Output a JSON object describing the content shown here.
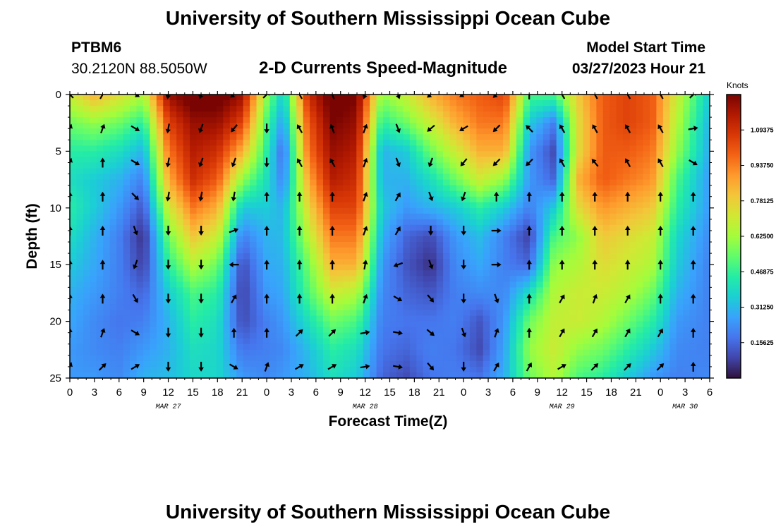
{
  "header": {
    "title": "University of Southern Mississippi Ocean Cube",
    "station": "PTBM6",
    "coords": "30.2120N  88.5050W",
    "subtitle": "2-D Currents Speed-Magnitude",
    "model_label": "Model Start Time",
    "model_time": "03/27/2023 Hour 21"
  },
  "footer": {
    "title": "University of Southern Mississippi Ocean Cube"
  },
  "chart_data": {
    "type": "heatmap",
    "title": "2-D Currents Speed-Magnitude",
    "xlabel": "Forecast Time(Z)",
    "ylabel": "Depth (ft)",
    "x_tick_labels": [
      "0",
      "3",
      "6",
      "9",
      "12",
      "15",
      "18",
      "21",
      "0",
      "3",
      "6",
      "9",
      "12",
      "15",
      "18",
      "21",
      "0",
      "3",
      "6",
      "9",
      "12",
      "15",
      "18",
      "21",
      "0",
      "3",
      "6"
    ],
    "x_hours_range": [
      0,
      78
    ],
    "day_labels": [
      {
        "text": "MAR 27",
        "hour": 12
      },
      {
        "text": "MAR 28",
        "hour": 36
      },
      {
        "text": "MAR 29",
        "hour": 60
      },
      {
        "text": "MAR 30",
        "hour": 75
      }
    ],
    "y_ticks": [
      0,
      5,
      10,
      15,
      20,
      25
    ],
    "ylim": [
      0,
      25
    ],
    "colorbar": {
      "unit": "Knots",
      "range": [
        0,
        1.25
      ],
      "labels": [
        "1.09375",
        "0.93750",
        "0.78125",
        "0.62500",
        "0.46875",
        "0.31250",
        "0.15625"
      ],
      "label_values": [
        1.09375,
        0.9375,
        0.78125,
        0.625,
        0.46875,
        0.3125,
        0.15625
      ],
      "colors": [
        "#30123b",
        "#4145ab",
        "#4675ed",
        "#39a2fc",
        "#1bcfd4",
        "#24eca6",
        "#61fc6c",
        "#a4fc3b",
        "#d1e834",
        "#f3c63a",
        "#fe9b2d",
        "#f36315",
        "#d93806",
        "#b11901",
        "#7a0402"
      ]
    },
    "speed_profiles": {
      "depths_ft": [
        0,
        2.5,
        5,
        7.5,
        10,
        12.5,
        15,
        17.5,
        20,
        22.5,
        25
      ],
      "points": [
        {
          "hour": 0,
          "v": [
            0.7,
            0.55,
            0.45,
            0.4,
            0.45,
            0.4,
            0.35,
            0.3,
            0.28,
            0.25,
            0.25
          ]
        },
        {
          "hour": 3,
          "v": [
            0.85,
            0.6,
            0.45,
            0.35,
            0.35,
            0.3,
            0.28,
            0.25,
            0.22,
            0.22,
            0.25
          ]
        },
        {
          "hour": 6,
          "v": [
            0.75,
            0.55,
            0.4,
            0.3,
            0.25,
            0.2,
            0.2,
            0.2,
            0.18,
            0.2,
            0.22
          ]
        },
        {
          "hour": 9,
          "v": [
            0.65,
            0.45,
            0.3,
            0.2,
            0.12,
            0.05,
            0.08,
            0.15,
            0.2,
            0.25,
            0.3
          ]
        },
        {
          "hour": 12,
          "v": [
            1.2,
            1.05,
            0.95,
            0.85,
            0.7,
            0.55,
            0.45,
            0.35,
            0.3,
            0.3,
            0.32
          ]
        },
        {
          "hour": 15,
          "v": [
            1.3,
            1.2,
            1.15,
            1.1,
            0.95,
            0.8,
            0.65,
            0.5,
            0.45,
            0.4,
            0.38
          ]
        },
        {
          "hour": 18,
          "v": [
            1.3,
            1.2,
            1.1,
            1.0,
            0.85,
            0.7,
            0.55,
            0.45,
            0.4,
            0.38,
            0.38
          ]
        },
        {
          "hour": 21,
          "v": [
            1.2,
            1.05,
            0.85,
            0.6,
            0.35,
            0.2,
            0.1,
            0.08,
            0.1,
            0.18,
            0.25
          ]
        },
        {
          "hour": 24,
          "v": [
            0.6,
            0.5,
            0.45,
            0.4,
            0.35,
            0.3,
            0.28,
            0.25,
            0.2,
            0.2,
            0.22
          ]
        },
        {
          "hour": 26,
          "v": [
            0.35,
            0.25,
            0.15,
            0.2,
            0.3,
            0.32,
            0.3,
            0.28,
            0.25,
            0.22,
            0.25
          ]
        },
        {
          "hour": 29,
          "v": [
            1.1,
            1.0,
            0.95,
            0.85,
            0.75,
            0.65,
            0.55,
            0.5,
            0.4,
            0.32,
            0.3
          ]
        },
        {
          "hour": 32,
          "v": [
            1.3,
            1.25,
            1.2,
            1.15,
            1.05,
            0.95,
            0.85,
            0.7,
            0.55,
            0.45,
            0.4
          ]
        },
        {
          "hour": 35,
          "v": [
            1.25,
            1.2,
            1.15,
            1.1,
            1.05,
            0.95,
            0.85,
            0.65,
            0.5,
            0.4,
            0.35
          ]
        },
        {
          "hour": 38,
          "v": [
            0.6,
            0.45,
            0.3,
            0.3,
            0.35,
            0.3,
            0.25,
            0.22,
            0.2,
            0.18,
            0.15
          ]
        },
        {
          "hour": 41,
          "v": [
            0.7,
            0.55,
            0.35,
            0.3,
            0.25,
            0.15,
            0.12,
            0.15,
            0.18,
            0.15,
            0.1
          ]
        },
        {
          "hour": 44,
          "v": [
            0.85,
            0.7,
            0.55,
            0.4,
            0.3,
            0.1,
            0.05,
            0.12,
            0.18,
            0.2,
            0.18
          ]
        },
        {
          "hour": 47,
          "v": [
            0.95,
            0.85,
            0.7,
            0.55,
            0.35,
            0.25,
            0.22,
            0.2,
            0.2,
            0.18,
            0.2
          ]
        },
        {
          "hour": 50,
          "v": [
            1.0,
            0.95,
            0.85,
            0.7,
            0.45,
            0.32,
            0.28,
            0.22,
            0.12,
            0.1,
            0.18
          ]
        },
        {
          "hour": 53,
          "v": [
            1.05,
            0.95,
            0.85,
            0.6,
            0.35,
            0.2,
            0.2,
            0.22,
            0.25,
            0.28,
            0.3
          ]
        },
        {
          "hour": 56,
          "v": [
            0.5,
            0.35,
            0.25,
            0.25,
            0.2,
            0.08,
            0.15,
            0.4,
            0.55,
            0.6,
            0.55
          ]
        },
        {
          "hour": 59,
          "v": [
            0.5,
            0.2,
            0.1,
            0.15,
            0.35,
            0.5,
            0.6,
            0.65,
            0.68,
            0.7,
            0.65
          ]
        },
        {
          "hour": 62,
          "v": [
            0.8,
            0.75,
            0.75,
            0.85,
            0.75,
            0.6,
            0.65,
            0.7,
            0.7,
            0.6,
            0.5
          ]
        },
        {
          "hour": 65,
          "v": [
            1.0,
            1.0,
            1.0,
            1.0,
            0.9,
            0.8,
            0.75,
            0.7,
            0.65,
            0.55,
            0.45
          ]
        },
        {
          "hour": 68,
          "v": [
            1.05,
            1.05,
            1.0,
            0.95,
            0.85,
            0.75,
            0.7,
            0.65,
            0.55,
            0.45,
            0.35
          ]
        },
        {
          "hour": 71,
          "v": [
            1.0,
            1.0,
            0.95,
            0.9,
            0.8,
            0.7,
            0.65,
            0.55,
            0.45,
            0.35,
            0.25
          ]
        },
        {
          "hour": 74,
          "v": [
            0.7,
            0.65,
            0.6,
            0.5,
            0.45,
            0.38,
            0.35,
            0.3,
            0.25,
            0.22,
            0.2
          ]
        },
        {
          "hour": 78,
          "v": [
            0.35,
            0.3,
            0.28,
            0.25,
            0.25,
            0.22,
            0.2,
            0.2,
            0.2,
            0.2,
            0.22
          ]
        }
      ]
    },
    "vector_grid": {
      "hours": [
        0,
        4,
        8,
        12,
        16,
        20,
        24,
        28,
        32,
        36,
        40,
        44,
        48,
        52,
        56,
        60,
        64,
        68,
        72,
        76
      ],
      "depths_ft": [
        0,
        3,
        6,
        9,
        12,
        15,
        18,
        21,
        24
      ],
      "direction_deg_by_column": [
        [
          315,
          20,
          20,
          0,
          0,
          0,
          0,
          0,
          20
        ],
        [
          30,
          20,
          0,
          0,
          0,
          0,
          0,
          20,
          45
        ],
        [
          120,
          120,
          120,
          135,
          160,
          200,
          150,
          120,
          60
        ],
        [
          190,
          190,
          190,
          190,
          180,
          180,
          180,
          180,
          180
        ],
        [
          200,
          200,
          200,
          190,
          180,
          180,
          180,
          180,
          180
        ],
        [
          230,
          220,
          200,
          190,
          70,
          270,
          30,
          0,
          120
        ],
        [
          45,
          180,
          180,
          0,
          0,
          0,
          0,
          0,
          20
        ],
        [
          330,
          330,
          330,
          0,
          0,
          0,
          0,
          45,
          60
        ],
        [
          340,
          340,
          330,
          0,
          0,
          0,
          0,
          45,
          60
        ],
        [
          200,
          20,
          20,
          20,
          20,
          10,
          20,
          80,
          80
        ],
        [
          160,
          160,
          160,
          30,
          30,
          250,
          120,
          100,
          100
        ],
        [
          230,
          230,
          200,
          160,
          180,
          160,
          140,
          130,
          140
        ],
        [
          240,
          240,
          220,
          200,
          180,
          180,
          180,
          160,
          180
        ],
        [
          225,
          225,
          225,
          0,
          90,
          90,
          160,
          20,
          30
        ],
        [
          0,
          315,
          225,
          0,
          0,
          0,
          0,
          0,
          30
        ],
        [
          330,
          330,
          330,
          0,
          0,
          0,
          30,
          30,
          60
        ],
        [
          330,
          330,
          320,
          0,
          0,
          0,
          20,
          30,
          45
        ],
        [
          330,
          330,
          330,
          0,
          0,
          0,
          30,
          30,
          45
        ],
        [
          330,
          330,
          330,
          0,
          0,
          0,
          0,
          30,
          45
        ],
        [
          45,
          80,
          120,
          0,
          0,
          0,
          0,
          0,
          0
        ]
      ]
    }
  }
}
